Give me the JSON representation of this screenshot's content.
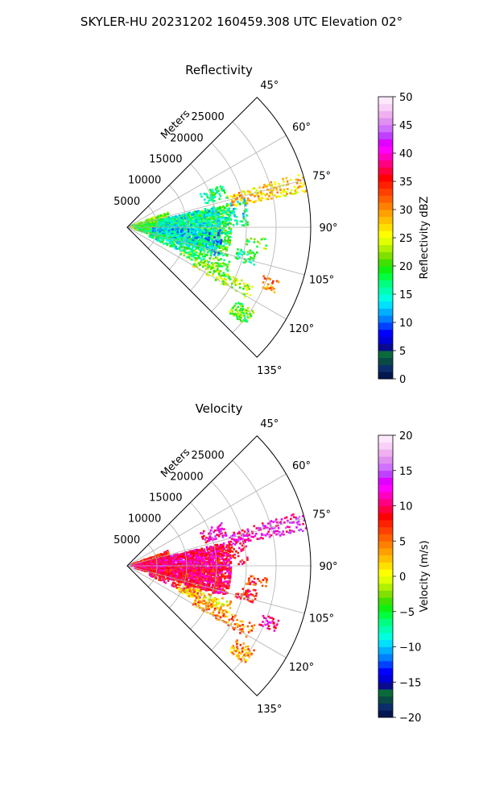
{
  "suptitle": "SKYLER-HU  20231202  160459.308 UTC Elevation 02°",
  "chart_data": [
    {
      "type": "heatmap",
      "projection": "polar-sector",
      "title": "Reflectivity",
      "radial_label": "Meters",
      "radial_ticks": [
        "5000",
        "10000",
        "15000",
        "20000",
        "25000"
      ],
      "angle_ticks": [
        "45°",
        "60°",
        "75°",
        "90°",
        "105°",
        "120°",
        "135°"
      ],
      "azimuth_range_deg": [
        45,
        135
      ],
      "range_lim_m": [
        0,
        30000
      ],
      "grid": true,
      "colorbar": {
        "label": "Reflectivity dBZ",
        "ticks": [
          "0",
          "5",
          "10",
          "15",
          "20",
          "25",
          "30",
          "35",
          "40",
          "45",
          "50"
        ],
        "range": [
          0,
          50
        ],
        "colors": [
          "#04164f",
          "#0b2e6a",
          "#0a4a44",
          "#0b6a3c",
          "#0a0a90",
          "#0000d8",
          "#0000ff",
          "#0040ff",
          "#0080ff",
          "#00b0ff",
          "#00e0ff",
          "#00ffe0",
          "#00ffb0",
          "#00ff80",
          "#00ff40",
          "#10f010",
          "#40e000",
          "#80e000",
          "#b0f000",
          "#e0ff00",
          "#ffff00",
          "#ffe000",
          "#ffc000",
          "#ffa000",
          "#ff8000",
          "#ff6000",
          "#ff4000",
          "#ff2000",
          "#ff0000",
          "#ff0040",
          "#ff0080",
          "#ff00c0",
          "#ff00ff",
          "#e000ff",
          "#c040ff",
          "#d070ff",
          "#e090f0",
          "#f0b0f0",
          "#f8d0f8",
          "#fde8fc"
        ]
      }
    },
    {
      "type": "heatmap",
      "projection": "polar-sector",
      "title": "Velocity",
      "radial_label": "Meters",
      "radial_ticks": [
        "5000",
        "10000",
        "15000",
        "20000",
        "25000"
      ],
      "angle_ticks": [
        "45°",
        "60°",
        "75°",
        "90°",
        "105°",
        "120°",
        "135°"
      ],
      "azimuth_range_deg": [
        45,
        135
      ],
      "range_lim_m": [
        0,
        30000
      ],
      "grid": true,
      "colorbar": {
        "label": "Velocity (m/s)",
        "ticks": [
          "−20",
          "−15",
          "−10",
          "−5",
          "0",
          "5",
          "10",
          "15",
          "20"
        ],
        "range": [
          -20,
          20
        ],
        "colors": [
          "#04164f",
          "#0b2e6a",
          "#0a4a44",
          "#0b6a3c",
          "#0a0a90",
          "#0000d8",
          "#0000ff",
          "#0040ff",
          "#0080ff",
          "#00b0ff",
          "#00e0ff",
          "#00ffe0",
          "#00ffb0",
          "#00ff80",
          "#00ff40",
          "#10f010",
          "#40e000",
          "#80e000",
          "#b0f000",
          "#e0ff00",
          "#ffff00",
          "#ffe000",
          "#ffc000",
          "#ffa000",
          "#ff8000",
          "#ff6000",
          "#ff4000",
          "#ff2000",
          "#ff0000",
          "#ff0040",
          "#ff0080",
          "#ff00c0",
          "#ff00ff",
          "#e000ff",
          "#c040ff",
          "#d070ff",
          "#e090f0",
          "#f0b0f0",
          "#f8d0f8",
          "#fde8fc"
        ]
      }
    }
  ]
}
